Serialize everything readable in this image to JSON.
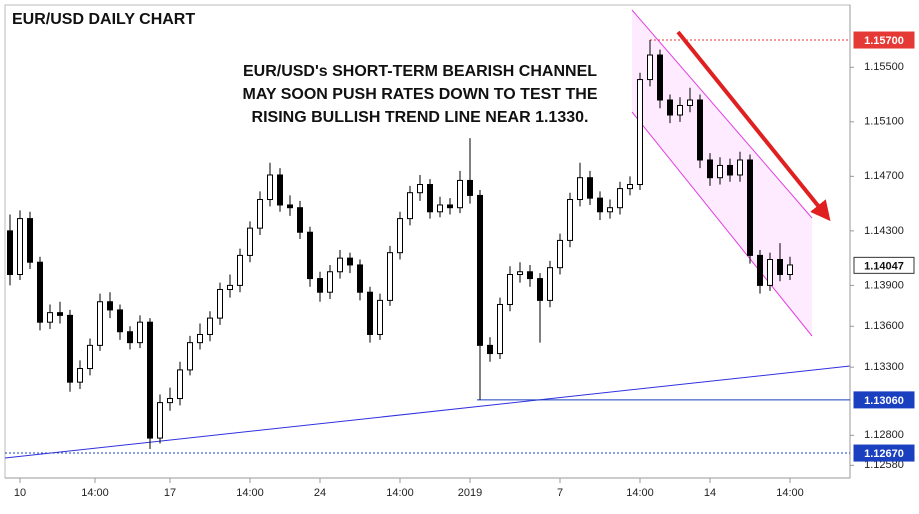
{
  "chart_data": {
    "type": "candlestick",
    "title": "EUR/USD DAILY CHART",
    "annotation": [
      "EUR/USD's SHORT-TERM BEARISH CHANNEL",
      "MAY SOON PUSH RATES DOWN TO TEST THE",
      "RISING BULLISH TREND LINE NEAR 1.1330."
    ],
    "bull_color": "#ffffff",
    "bear_color": "#000000",
    "open": [
      1.143,
      1.1398,
      1.1439,
      1.1407,
      1.1363,
      1.137,
      1.1368,
      1.1319,
      1.1329,
      1.1346,
      1.1378,
      1.1372,
      1.1356,
      1.1348,
      1.1363,
      1.1278,
      1.1304,
      1.1307,
      1.1328,
      1.1348,
      1.1354,
      1.1366,
      1.1387,
      1.139,
      1.1412,
      1.1432,
      1.1453,
      1.1471,
      1.1449,
      1.1447,
      1.1429,
      1.1395,
      1.1385,
      1.14,
      1.141,
      1.1405,
      1.1385,
      1.1354,
      1.1379,
      1.1414,
      1.1439,
      1.1458,
      1.1464,
      1.1444,
      1.1449,
      1.1447,
      1.1467,
      1.1456,
      1.1346,
      1.134,
      1.1376,
      1.1398,
      1.14,
      1.1395,
      1.1379,
      1.1403,
      1.1423,
      1.1453,
      1.1469,
      1.1454,
      1.1444,
      1.1447,
      1.1461,
      1.1464,
      1.1541,
      1.1559,
      1.1526,
      1.1515,
      1.1522,
      1.1526,
      1.1482,
      1.1469,
      1.1478,
      1.1471,
      1.1482,
      1.1412,
      1.139,
      1.1409,
      1.1398
    ],
    "high": [
      1.1442,
      1.1445,
      1.1444,
      1.1411,
      1.1376,
      1.1378,
      1.1372,
      1.1335,
      1.1351,
      1.1384,
      1.1385,
      1.1376,
      1.136,
      1.1368,
      1.1366,
      1.131,
      1.1315,
      1.1334,
      1.1353,
      1.1362,
      1.1371,
      1.1392,
      1.1398,
      1.1417,
      1.1437,
      1.1459,
      1.148,
      1.1476,
      1.1456,
      1.1452,
      1.1433,
      1.14,
      1.1405,
      1.1416,
      1.1414,
      1.1409,
      1.1389,
      1.1384,
      1.1419,
      1.1444,
      1.1463,
      1.1471,
      1.1468,
      1.1455,
      1.1454,
      1.1474,
      1.1498,
      1.146,
      1.1352,
      1.1381,
      1.1404,
      1.1407,
      1.1405,
      1.1399,
      1.1408,
      1.1428,
      1.1458,
      1.148,
      1.1474,
      1.1459,
      1.1453,
      1.1466,
      1.147,
      1.1546,
      1.157,
      1.1563,
      1.153,
      1.1528,
      1.1535,
      1.153,
      1.1487,
      1.1484,
      1.1483,
      1.1488,
      1.1486,
      1.1416,
      1.1414,
      1.1421,
      1.1411
    ],
    "low": [
      1.139,
      1.1394,
      1.1402,
      1.1357,
      1.1358,
      1.1362,
      1.1312,
      1.1314,
      1.1324,
      1.1342,
      1.1366,
      1.135,
      1.1343,
      1.1344,
      1.127,
      1.1274,
      1.1298,
      1.1302,
      1.1324,
      1.1343,
      1.1349,
      1.1361,
      1.1381,
      1.1385,
      1.1407,
      1.1427,
      1.1448,
      1.1444,
      1.1441,
      1.1424,
      1.1389,
      1.1378,
      1.138,
      1.1395,
      1.1399,
      1.1379,
      1.1348,
      1.135,
      1.1375,
      1.1409,
      1.1434,
      1.1452,
      1.1439,
      1.144,
      1.1442,
      1.1443,
      1.145,
      1.1306,
      1.1334,
      1.1336,
      1.1371,
      1.1392,
      1.1389,
      1.1348,
      1.1374,
      1.1398,
      1.1418,
      1.1448,
      1.1449,
      1.1438,
      1.1439,
      1.1442,
      1.1456,
      1.146,
      1.1536,
      1.152,
      1.1509,
      1.151,
      1.1517,
      1.1476,
      1.1463,
      1.1464,
      1.1466,
      1.1466,
      1.1406,
      1.1384,
      1.1386,
      1.1393,
      1.1394
    ],
    "close": [
      1.1398,
      1.1439,
      1.1407,
      1.1363,
      1.137,
      1.1368,
      1.1319,
      1.1329,
      1.1346,
      1.1378,
      1.1372,
      1.1356,
      1.1348,
      1.1363,
      1.1278,
      1.1304,
      1.1307,
      1.1328,
      1.1348,
      1.1354,
      1.1366,
      1.1387,
      1.139,
      1.1412,
      1.1432,
      1.1453,
      1.1471,
      1.1449,
      1.1447,
      1.1429,
      1.1395,
      1.1385,
      1.14,
      1.141,
      1.1405,
      1.1385,
      1.1354,
      1.1379,
      1.1414,
      1.1439,
      1.1458,
      1.1464,
      1.1444,
      1.1449,
      1.1447,
      1.1467,
      1.1456,
      1.1346,
      1.134,
      1.1376,
      1.1398,
      1.14,
      1.1395,
      1.1379,
      1.1403,
      1.1423,
      1.1453,
      1.1469,
      1.1454,
      1.1444,
      1.1447,
      1.1461,
      1.1464,
      1.1541,
      1.1559,
      1.1526,
      1.1515,
      1.1522,
      1.1526,
      1.1482,
      1.1469,
      1.1478,
      1.1471,
      1.1482,
      1.1412,
      1.139,
      1.1409,
      1.1398,
      1.1405
    ],
    "xlim": [
      -0.5,
      84
    ],
    "xticks": [
      {
        "value": 1,
        "label": "10"
      },
      {
        "value": 8.5,
        "label": "14:00"
      },
      {
        "value": 16,
        "label": "17"
      },
      {
        "value": 24,
        "label": "14:00"
      },
      {
        "value": 31,
        "label": "24"
      },
      {
        "value": 39,
        "label": "14:00"
      },
      {
        "value": 46,
        "label": "2019"
      },
      {
        "value": 55,
        "label": "7"
      },
      {
        "value": 63,
        "label": "14:00"
      },
      {
        "value": 70,
        "label": "14"
      },
      {
        "value": 78,
        "label": "14:00"
      }
    ],
    "ylim": [
      1.12487,
      1.15957
    ],
    "yticks": [
      {
        "value": 1.1258,
        "label": "1.12580"
      },
      {
        "value": 1.128,
        "label": "1.12800"
      },
      {
        "value": 1.133,
        "label": "1.13300"
      },
      {
        "value": 1.136,
        "label": "1.13600"
      },
      {
        "value": 1.139,
        "label": "1.13900"
      },
      {
        "value": 1.143,
        "label": "1.14300"
      },
      {
        "value": 1.147,
        "label": "1.14700"
      },
      {
        "value": 1.151,
        "label": "1.15100"
      },
      {
        "value": 1.155,
        "label": "1.15500"
      }
    ],
    "levels": [
      {
        "value": 1.157,
        "label": "1.15700",
        "color": "#e53935"
      },
      {
        "value": 1.14047,
        "label": "1.14047",
        "color": "#ffffff"
      },
      {
        "value": 1.1306,
        "label": "1.13060",
        "color": "#1a3fbf"
      },
      {
        "value": 1.1267,
        "label": "1.12670",
        "color": "#1a3fbf"
      }
    ]
  }
}
